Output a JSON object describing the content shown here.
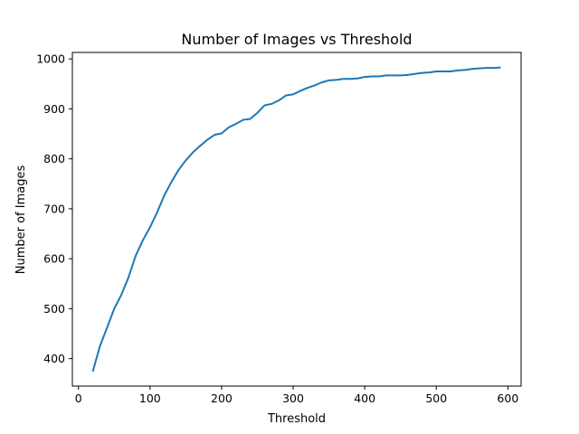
{
  "chart_data": {
    "type": "line",
    "title": "Number of Images vs Threshold",
    "xlabel": "Threshold",
    "ylabel": "Number of Images",
    "xlim": [
      -8.5,
      618.5
    ],
    "ylim": [
      345,
      1013
    ],
    "xticks": [
      0,
      100,
      200,
      300,
      400,
      500,
      600
    ],
    "yticks": [
      400,
      500,
      600,
      700,
      800,
      900,
      1000
    ],
    "grid": false,
    "legend": "none",
    "series": [
      {
        "color": "#1f77b4",
        "x": [
          20,
          30,
          40,
          50,
          60,
          70,
          80,
          90,
          100,
          110,
          120,
          130,
          140,
          150,
          160,
          170,
          180,
          190,
          200,
          210,
          220,
          230,
          240,
          250,
          260,
          270,
          280,
          290,
          300,
          310,
          320,
          330,
          340,
          350,
          360,
          370,
          380,
          390,
          400,
          410,
          420,
          430,
          440,
          450,
          460,
          470,
          480,
          490,
          500,
          510,
          520,
          530,
          540,
          550,
          560,
          570,
          580,
          590
        ],
        "y": [
          374,
          425,
          462,
          500,
          528,
          563,
          606,
          637,
          663,
          693,
          727,
          754,
          778,
          797,
          813,
          826,
          838,
          848,
          851,
          863,
          870,
          878,
          880,
          892,
          907,
          910,
          917,
          927,
          929,
          936,
          942,
          947,
          953,
          957,
          958,
          960,
          960,
          961,
          964,
          965,
          965,
          967,
          967,
          967,
          968,
          970,
          972,
          973,
          975,
          975,
          975,
          977,
          978,
          980,
          981,
          982,
          982,
          983
        ]
      }
    ]
  }
}
